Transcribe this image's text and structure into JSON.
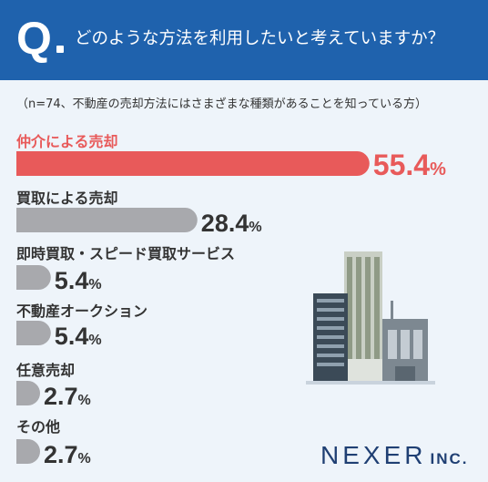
{
  "header": {
    "q_mark": "Q",
    "question": "どのような方法を利用したいと考えていますか？"
  },
  "note": "（n=74、不動産の売却方法にはさまざまな種類があることを知っている方）",
  "logo": {
    "main": "NEXER",
    "sub": "INC."
  },
  "colors": {
    "header_bg": "#1f62ad",
    "highlight": "#e85a5a",
    "bar_gray": "#a8a9ad",
    "background": "#eef4fa"
  },
  "chart_data": {
    "type": "bar",
    "orientation": "horizontal",
    "categories": [
      "仲介による売却",
      "買取による売却",
      "即時買取・スピード買取サービス",
      "不動産オークション",
      "任意売却",
      "その他"
    ],
    "values": [
      55.4,
      28.4,
      5.4,
      5.4,
      2.7,
      2.7
    ],
    "unit": "%",
    "highlight_index": 0,
    "legend": "none",
    "grid": false
  }
}
